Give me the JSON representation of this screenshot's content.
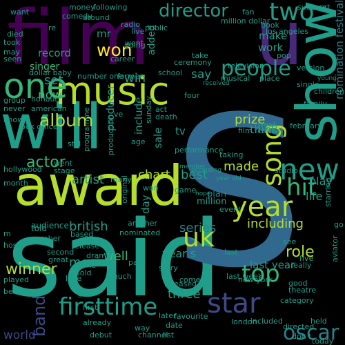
{
  "colors": {
    "background": "#000000",
    "purple_dark": "#440154",
    "purple": "#482878",
    "indigo": "#3e4989",
    "blue": "#31688e",
    "teal_blue": "#26828e",
    "teal": "#1f9e89",
    "green": "#35b779",
    "lime": "#6ece58",
    "yellow_green": "#b5de2b",
    "yellow": "#fde725"
  },
  "words": [
    {
      "text": "said"
    },
    {
      "text": "S"
    },
    {
      "text": "film"
    },
    {
      "text": "award"
    },
    {
      "text": "show"
    },
    {
      "text": "will"
    },
    {
      "text": "music"
    },
    {
      "text": "u"
    },
    {
      "text": "star"
    },
    {
      "text": "year"
    },
    {
      "text": "firsttime"
    },
    {
      "text": "song"
    },
    {
      "text": "new"
    },
    {
      "text": "one"
    },
    {
      "text": "uk"
    },
    {
      "text": "two"
    },
    {
      "text": "top"
    },
    {
      "text": "album"
    },
    {
      "text": "people"
    },
    {
      "text": "director"
    },
    {
      "text": "won"
    },
    {
      "text": "hit"
    },
    {
      "text": "oscar"
    },
    {
      "text": "band"
    },
    {
      "text": "winner"
    },
    {
      "text": "actor"
    },
    {
      "text": "artist"
    },
    {
      "text": "prize"
    },
    {
      "text": "made"
    },
    {
      "text": "best"
    },
    {
      "text": "chart"
    },
    {
      "text": "role"
    },
    {
      "text": "including"
    },
    {
      "text": "series"
    },
    {
      "text": "british"
    },
    {
      "text": "movie"
    },
    {
      "text": "three"
    },
    {
      "text": "well"
    },
    {
      "text": "record"
    },
    {
      "text": "singer"
    },
    {
      "text": "win"
    },
    {
      "text": "mr"
    },
    {
      "text": "set"
    },
    {
      "text": "now"
    },
    {
      "text": "producer"
    },
    {
      "text": "include"
    },
    {
      "text": "sale"
    },
    {
      "text": "tv"
    },
    {
      "text": "think"
    },
    {
      "text": "work"
    },
    {
      "text": "make"
    },
    {
      "text": "say"
    },
    {
      "text": "added"
    },
    {
      "text": "play"
    },
    {
      "text": "life"
    },
    {
      "text": "world"
    },
    {
      "text": "day"
    },
    {
      "text": "year s"
    },
    {
      "text": "last year"
    },
    {
      "text": "nomination festival"
    },
    {
      "text": "released"
    },
    {
      "text": "plan"
    },
    {
      "text": "million"
    },
    {
      "text": "told"
    },
    {
      "text": "audience"
    },
    {
      "text": "second"
    },
    {
      "text": "great"
    },
    {
      "text": "drama"
    },
    {
      "text": "release"
    },
    {
      "text": "home"
    },
    {
      "text": "sold"
    },
    {
      "text": "much"
    },
    {
      "text": "category"
    },
    {
      "text": "favourite"
    },
    {
      "text": "london"
    },
    {
      "text": "included"
    },
    {
      "text": "held"
    },
    {
      "text": "theatre"
    },
    {
      "text": "good"
    },
    {
      "text": "really"
    },
    {
      "text": "five"
    },
    {
      "text": "new york"
    },
    {
      "text": "last"
    },
    {
      "text": "taking"
    },
    {
      "text": "according"
    },
    {
      "text": "year old"
    },
    {
      "text": "performance"
    },
    {
      "text": "member"
    },
    {
      "text": "february"
    },
    {
      "text": "family"
    },
    {
      "text": "film festival"
    },
    {
      "text": "single"
    },
    {
      "text": "place"
    },
    {
      "text": "version"
    },
    {
      "text": "musical"
    },
    {
      "text": "school"
    },
    {
      "text": "act"
    },
    {
      "text": "death"
    },
    {
      "text": "four"
    },
    {
      "text": "week"
    },
    {
      "text": "stage"
    },
    {
      "text": "went"
    },
    {
      "text": "programme"
    },
    {
      "text": "production"
    },
    {
      "text": "sunday"
    },
    {
      "text": "box office"
    },
    {
      "text": "number one"
    },
    {
      "text": "former"
    },
    {
      "text": "career"
    },
    {
      "text": "dollar baby"
    },
    {
      "text": "money"
    },
    {
      "text": "comedy"
    },
    {
      "text": "following"
    },
    {
      "text": "around"
    },
    {
      "text": "fan"
    },
    {
      "text": "million dollar"
    },
    {
      "text": "success"
    },
    {
      "text": "court"
    },
    {
      "text": "book"
    },
    {
      "text": "los angeles"
    },
    {
      "text": "television"
    },
    {
      "text": "ceremony"
    },
    {
      "text": "take"
    },
    {
      "text": "pop"
    },
    {
      "text": "received"
    },
    {
      "text": "public"
    },
    {
      "text": "radio"
    },
    {
      "text": "live"
    },
    {
      "text": "went"
    },
    {
      "text": "children"
    },
    {
      "text": "young"
    },
    {
      "text": "want"
    },
    {
      "text": "died"
    },
    {
      "text": "took"
    },
    {
      "text": "may"
    },
    {
      "text": "seen"
    },
    {
      "text": "group"
    },
    {
      "text": "honour"
    },
    {
      "text": "american"
    },
    {
      "text": "never"
    },
    {
      "text": "know"
    },
    {
      "text": "hollywood"
    },
    {
      "text": "month"
    },
    {
      "text": "based"
    },
    {
      "text": "bbc"
    },
    {
      "text": "played"
    },
    {
      "text": "become"
    },
    {
      "text": "love"
    },
    {
      "text": "part"
    },
    {
      "text": "story"
    },
    {
      "text": "come"
    },
    {
      "text": "later"
    },
    {
      "text": "already"
    },
    {
      "text": "debut"
    },
    {
      "text": "channel"
    },
    {
      "text": "list"
    },
    {
      "text": "don t"
    },
    {
      "text": "original"
    },
    {
      "text": "another"
    },
    {
      "text": "nominated"
    },
    {
      "text": "many"
    },
    {
      "text": "hope"
    },
    {
      "text": "event"
    },
    {
      "text": "still"
    },
    {
      "text": "going"
    },
    {
      "text": "directed"
    },
    {
      "text": "aviator"
    },
    {
      "text": "starring"
    },
    {
      "text": "go"
    },
    {
      "text": "host"
    },
    {
      "text": "re"
    },
    {
      "text": "ve"
    },
    {
      "text": "m"
    },
    {
      "text": "studio"
    },
    {
      "text": "first"
    },
    {
      "text": "see"
    },
    {
      "text": "age"
    },
    {
      "text": "number"
    },
    {
      "text": "got"
    },
    {
      "text": "won"
    },
    {
      "text": "game"
    },
    {
      "text": "date"
    },
    {
      "text": "today"
    },
    {
      "text": "way"
    },
    {
      "text": "last week"
    }
  ]
}
